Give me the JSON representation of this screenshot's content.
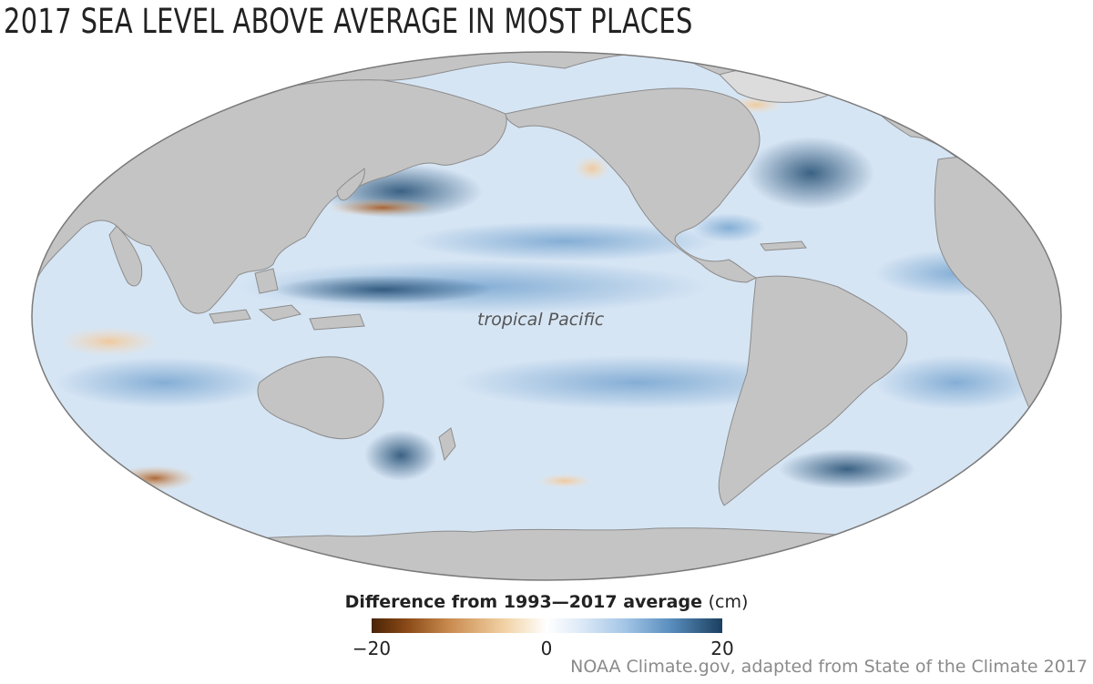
{
  "title": "2017 SEA LEVEL ABOVE AVERAGE IN MOST PLACES",
  "map_label": "tropical Pacific",
  "legend": {
    "title": "Difference from 1993—2017 average",
    "unit": "(cm)",
    "ticks": [
      "−20",
      "0",
      "20"
    ],
    "range": [
      -20,
      20
    ]
  },
  "credit": "NOAA Climate.gov, adapted from State of the Climate 2017",
  "colors": {
    "land": "#c4c4c4",
    "ice": "#dcdcdc",
    "ocean_base": "#d9e6f4",
    "ocean_high": "#1b3f5f",
    "ocean_low": "#8a4a17"
  }
}
